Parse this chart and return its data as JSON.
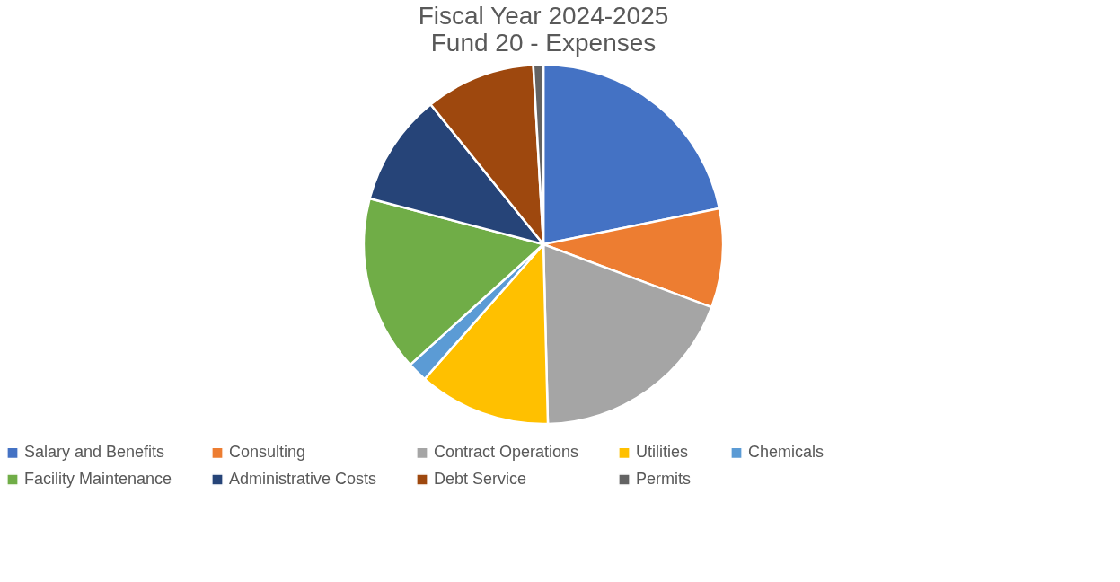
{
  "chart_data": {
    "type": "pie",
    "title": "Fiscal Year 2024-2025\nFund 20 - Expenses",
    "categories": [
      "Salary and Benefits",
      "Consulting",
      "Contract Operations",
      "Utilities",
      "Chemicals",
      "Facility Maintenance",
      "Administrative Costs",
      "Debt Service",
      "Permits"
    ],
    "values": [
      21.8,
      8.9,
      18.9,
      11.9,
      1.8,
      15.8,
      10.1,
      9.9,
      0.9
    ],
    "colors": [
      "#4472c4",
      "#ed7d31",
      "#a5a5a5",
      "#ffc000",
      "#5b9bd5",
      "#70ad47",
      "#264478",
      "#9e480e",
      "#636363"
    ],
    "legend": "bottom"
  }
}
